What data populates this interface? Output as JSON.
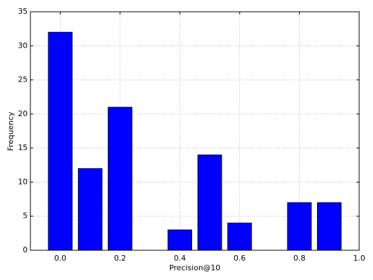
{
  "chart_data": {
    "type": "bar",
    "xlabel": "Precision@10",
    "ylabel": "Frequency",
    "x": [
      0,
      0.1,
      0.2,
      0.3,
      0.4,
      0.5,
      0.6,
      0.7,
      0.8,
      0.9
    ],
    "values": [
      32,
      12,
      21,
      0,
      3,
      14,
      4,
      0,
      7,
      7
    ],
    "color": "#0000ff",
    "xlim": [
      -0.1,
      1.0
    ],
    "xticks": [
      {
        "value": 0,
        "label": "0.0"
      },
      {
        "value": 0.2,
        "label": "0.2"
      },
      {
        "value": 0.4,
        "label": "0.4"
      },
      {
        "value": 0.6,
        "label": "0.6"
      },
      {
        "value": 0.8,
        "label": "0.8"
      },
      {
        "value": 1.0,
        "label": "1.0"
      }
    ],
    "ylim": [
      0,
      35
    ],
    "yticks": [
      0,
      5,
      10,
      15,
      20,
      25,
      30,
      35
    ],
    "grid": true
  }
}
